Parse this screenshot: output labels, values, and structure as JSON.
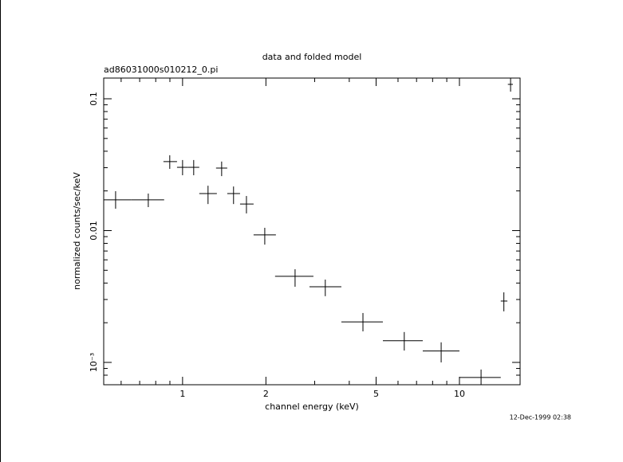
{
  "chart_data": {
    "type": "errorbar",
    "title": "data and folded model",
    "subtitle": "ad86031000s010212_0.pi",
    "xlabel": "channel energy (keV)",
    "ylabel": "normalized counts/sec/keV",
    "timestamp": "12-Dec-1999 02:38",
    "xscale": "log",
    "yscale": "log",
    "color": "#000000",
    "xlim": [
      0.519,
      16.56
    ],
    "ylim": [
      0.000677,
      0.1436
    ],
    "xticks": [
      1,
      2,
      5,
      10
    ],
    "yticks": [
      0.1,
      0.01,
      {
        "value": 0.001,
        "label": "10⁻³"
      }
    ],
    "xminorticks": [
      0.6,
      0.7,
      0.8,
      0.9,
      3,
      4,
      6,
      7,
      8,
      9
    ],
    "yminorticks": [
      0.0008,
      0.0009,
      0.002,
      0.003,
      0.004,
      0.005,
      0.006,
      0.007,
      0.008,
      0.009,
      0.02,
      0.03,
      0.04,
      0.05,
      0.06,
      0.07,
      0.08,
      0.09
    ],
    "x": [
      0.573,
      0.752,
      0.899,
      1.0,
      1.097,
      1.236,
      1.384,
      1.528,
      1.701,
      1.981,
      2.549,
      3.277,
      4.482,
      6.32,
      8.59,
      11.97,
      14.47,
      15.3
    ],
    "x_lo": [
      0.519,
      0.654,
      0.853,
      0.955,
      1.047,
      1.149,
      1.321,
      1.45,
      1.613,
      1.805,
      2.158,
      2.873,
      3.746,
      5.29,
      7.37,
      10.0,
      14.1,
      14.96
    ],
    "x_hi": [
      0.654,
      0.858,
      0.955,
      1.047,
      1.149,
      1.33,
      1.45,
      1.613,
      1.805,
      2.173,
      2.969,
      3.746,
      5.29,
      7.37,
      10.0,
      14.1,
      14.9,
      15.6
    ],
    "values": [
      0.0171,
      0.0171,
      0.0334,
      0.0302,
      0.0302,
      0.0191,
      0.0298,
      0.0191,
      0.0159,
      0.00927,
      0.0045,
      0.00375,
      0.00203,
      0.00146,
      0.00122,
      0.000768,
      0.00292,
      0.1286
    ],
    "y_lo": [
      0.01466,
      0.01507,
      0.0294,
      0.0263,
      0.0263,
      0.0159,
      0.0259,
      0.0159,
      0.0135,
      0.00783,
      0.00375,
      0.00318,
      0.00172,
      0.00123,
      0.001,
      0.000677,
      0.00244,
      0.1133
    ],
    "y_hi": [
      0.0199,
      0.0191,
      0.0373,
      0.0343,
      0.0343,
      0.0219,
      0.0334,
      0.0216,
      0.0183,
      0.0105,
      0.00509,
      0.00425,
      0.00237,
      0.0017,
      0.00142,
      0.000883,
      0.0034,
      0.1436
    ]
  }
}
